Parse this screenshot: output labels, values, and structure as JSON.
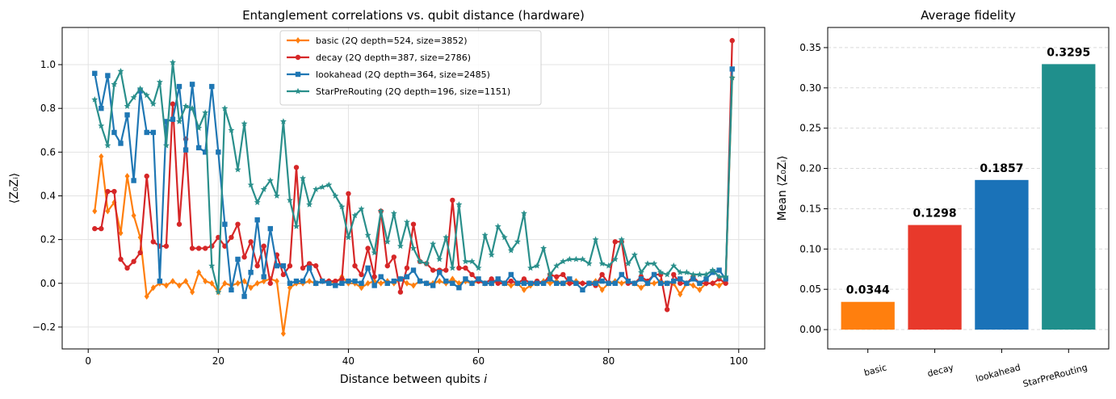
{
  "chart_data": [
    {
      "type": "line",
      "title": "Entanglement correlations vs. qubit distance (hardware)",
      "xlabel": "Distance between qubits i",
      "xlabel_text": "Distance between qubits ",
      "xlabel_var": "i",
      "ylabel": "⟨Z₀Zᵢ⟩",
      "xlim": [
        -4,
        104
      ],
      "ylim": [
        -0.3,
        1.17
      ],
      "xticks": [
        0,
        20,
        40,
        60,
        80,
        100
      ],
      "xtick_labels": [
        "0",
        "20",
        "40",
        "60",
        "80",
        "100"
      ],
      "yticks": [
        -0.2,
        0.0,
        0.2,
        0.4,
        0.6,
        0.8,
        1.0
      ],
      "ytick_labels": [
        "−0.2",
        "0.0",
        "0.2",
        "0.4",
        "0.6",
        "0.8",
        "1.0"
      ],
      "grid": true,
      "legend_position": "top-center",
      "x": [
        1,
        2,
        3,
        4,
        5,
        6,
        7,
        8,
        9,
        10,
        11,
        12,
        13,
        14,
        15,
        16,
        17,
        18,
        19,
        20,
        21,
        22,
        23,
        24,
        25,
        26,
        27,
        28,
        29,
        30,
        31,
        32,
        33,
        34,
        35,
        36,
        37,
        38,
        39,
        40,
        41,
        42,
        43,
        44,
        45,
        46,
        47,
        48,
        49,
        50,
        51,
        52,
        53,
        54,
        55,
        56,
        57,
        58,
        59,
        60,
        61,
        62,
        63,
        64,
        65,
        66,
        67,
        68,
        69,
        70,
        71,
        72,
        73,
        74,
        75,
        76,
        77,
        78,
        79,
        80,
        81,
        82,
        83,
        84,
        85,
        86,
        87,
        88,
        89,
        90,
        91,
        92,
        93,
        94,
        95,
        96,
        97,
        98,
        99
      ],
      "series": [
        {
          "name": "basic (2Q depth=524, size=3852)",
          "color": "#ff7f0e",
          "marker": "diamond",
          "values": [
            0.33,
            0.58,
            0.33,
            0.37,
            0.23,
            0.49,
            0.31,
            0.21,
            -0.06,
            -0.02,
            0.0,
            -0.01,
            0.01,
            -0.01,
            0.01,
            -0.04,
            0.05,
            0.01,
            0.0,
            -0.04,
            0.0,
            -0.01,
            0.0,
            0.01,
            -0.02,
            0.0,
            0.01,
            0.02,
            0.01,
            -0.23,
            -0.02,
            0.0,
            0.0,
            0.01,
            0.0,
            0.01,
            0.01,
            0.0,
            0.03,
            0.0,
            0.0,
            -0.02,
            0.0,
            0.01,
            0.0,
            0.01,
            0.0,
            0.02,
            0.0,
            -0.01,
            0.01,
            0.0,
            0.0,
            0.01,
            0.0,
            0.02,
            0.0,
            0.01,
            0.0,
            0.01,
            0.0,
            0.0,
            0.01,
            0.0,
            -0.01,
            0.0,
            -0.03,
            -0.01,
            0.0,
            0.01,
            0.0,
            0.01,
            0.0,
            0.0,
            0.01,
            0.0,
            0.0,
            0.01,
            -0.03,
            0.0,
            0.01,
            0.0,
            0.01,
            0.0,
            -0.02,
            0.0,
            0.0,
            0.01,
            0.0,
            0.0,
            -0.05,
            0.0,
            -0.01,
            -0.03,
            0.0,
            0.0,
            -0.01,
            0.01,
            0.94
          ]
        },
        {
          "name": "decay (2Q depth=387, size=2786)",
          "color": "#d62728",
          "marker": "circle",
          "values": [
            0.25,
            0.25,
            0.42,
            0.42,
            0.11,
            0.07,
            0.1,
            0.14,
            0.49,
            0.19,
            0.17,
            0.17,
            0.82,
            0.27,
            0.66,
            0.16,
            0.16,
            0.16,
            0.17,
            0.21,
            0.17,
            0.21,
            0.27,
            0.12,
            0.19,
            0.08,
            0.17,
            0.0,
            0.13,
            0.04,
            0.08,
            0.53,
            0.07,
            0.09,
            0.08,
            0.01,
            0.01,
            0.01,
            0.02,
            0.41,
            0.08,
            0.04,
            0.16,
            0.03,
            0.33,
            0.08,
            0.12,
            -0.04,
            0.07,
            0.27,
            0.1,
            0.09,
            0.06,
            0.06,
            0.06,
            0.38,
            0.07,
            0.07,
            0.04,
            0.01,
            0.0,
            0.02,
            0.0,
            0.0,
            0.01,
            0.0,
            0.02,
            0.0,
            0.01,
            0.0,
            0.04,
            0.03,
            0.04,
            0.0,
            0.0,
            0.0,
            0.0,
            -0.01,
            0.04,
            0.0,
            0.19,
            0.19,
            0.0,
            0.0,
            0.03,
            0.01,
            0.04,
            0.04,
            -0.12,
            0.04,
            0.0,
            0.0,
            0.03,
            0.0,
            0.0,
            0.0,
            0.02,
            0.0,
            1.11
          ]
        },
        {
          "name": "lookahead (2Q depth=364, size=2485)",
          "color": "#1f77b4",
          "marker": "square",
          "values": [
            0.96,
            0.8,
            0.95,
            0.69,
            0.64,
            0.77,
            0.47,
            0.88,
            0.69,
            0.69,
            0.01,
            0.74,
            0.75,
            0.9,
            0.61,
            0.91,
            0.62,
            0.6,
            0.9,
            0.6,
            0.27,
            -0.03,
            0.11,
            -0.06,
            0.05,
            0.29,
            0.03,
            0.25,
            0.08,
            0.08,
            0.0,
            0.01,
            0.01,
            0.07,
            0.0,
            0.01,
            0.0,
            -0.01,
            0.0,
            0.01,
            0.01,
            0.0,
            0.07,
            -0.01,
            0.03,
            0.0,
            0.01,
            0.02,
            0.03,
            0.06,
            0.01,
            0.0,
            -0.01,
            0.05,
            0.01,
            0.0,
            -0.02,
            0.02,
            0.0,
            0.02,
            0.0,
            0.0,
            0.02,
            0.0,
            0.04,
            0.0,
            0.0,
            0.0,
            0.0,
            0.0,
            0.02,
            0.0,
            0.0,
            0.02,
            0.0,
            -0.03,
            0.0,
            0.0,
            0.01,
            0.0,
            0.0,
            0.04,
            0.01,
            0.0,
            0.02,
            0.0,
            0.04,
            0.0,
            0.0,
            0.01,
            0.02,
            0.0,
            0.02,
            0.0,
            0.02,
            0.05,
            0.06,
            0.02,
            0.98
          ]
        },
        {
          "name": "StarPreRouting (2Q depth=196, size=1151)",
          "color": "#2a8f8b",
          "marker": "star",
          "values": [
            0.84,
            0.72,
            0.63,
            0.91,
            0.97,
            0.81,
            0.85,
            0.89,
            0.86,
            0.82,
            0.92,
            0.63,
            1.01,
            0.74,
            0.81,
            0.8,
            0.71,
            0.78,
            0.08,
            -0.04,
            0.8,
            0.7,
            0.52,
            0.73,
            0.45,
            0.37,
            0.43,
            0.47,
            0.4,
            0.74,
            0.38,
            0.26,
            0.48,
            0.36,
            0.43,
            0.44,
            0.45,
            0.4,
            0.35,
            0.21,
            0.31,
            0.34,
            0.22,
            0.14,
            0.33,
            0.19,
            0.32,
            0.17,
            0.28,
            0.16,
            0.1,
            0.09,
            0.18,
            0.11,
            0.21,
            0.07,
            0.36,
            0.1,
            0.1,
            0.07,
            0.22,
            0.13,
            0.26,
            0.21,
            0.15,
            0.19,
            0.32,
            0.07,
            0.08,
            0.16,
            0.04,
            0.08,
            0.1,
            0.11,
            0.11,
            0.11,
            0.09,
            0.2,
            0.09,
            0.08,
            0.11,
            0.2,
            0.09,
            0.13,
            0.05,
            0.09,
            0.09,
            0.05,
            0.04,
            0.08,
            0.05,
            0.05,
            0.04,
            0.04,
            0.04,
            0.06,
            0.03,
            0.03,
            0.94
          ]
        }
      ]
    },
    {
      "type": "bar",
      "title": "Average fidelity",
      "xlabel": "",
      "ylabel": "Mean ⟨Z₀Zᵢ⟩",
      "categories": [
        "basic",
        "decay",
        "lookahead",
        "StarPreRouting"
      ],
      "values": [
        0.0344,
        0.1298,
        0.1857,
        0.3295
      ],
      "value_labels": [
        "0.0344",
        "0.1298",
        "0.1857",
        "0.3295"
      ],
      "colors": [
        "#ff7f0e",
        "#e8392b",
        "#1a72b8",
        "#1f8f8c"
      ],
      "ylim": [
        -0.024,
        0.375
      ],
      "yticks": [
        0.0,
        0.05,
        0.1,
        0.15,
        0.2,
        0.25,
        0.3,
        0.35
      ],
      "ytick_labels": [
        "0.00",
        "0.05",
        "0.10",
        "0.15",
        "0.20",
        "0.25",
        "0.30",
        "0.35"
      ],
      "grid": "y-dashed"
    }
  ]
}
